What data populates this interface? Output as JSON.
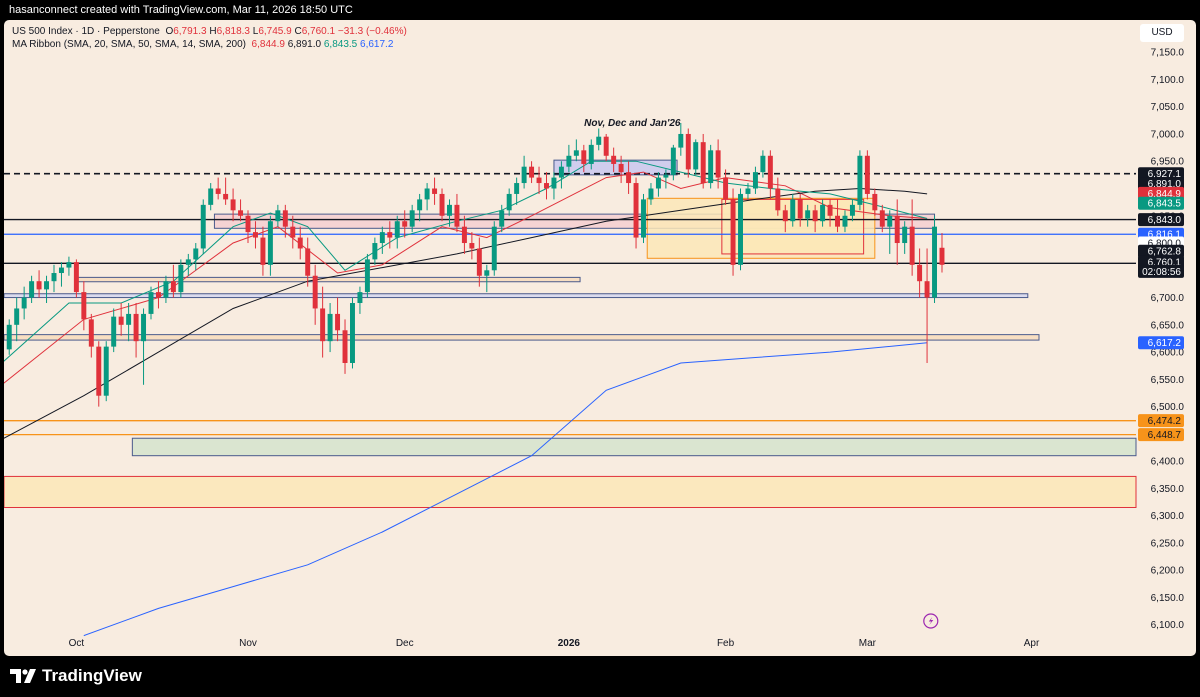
{
  "header": {
    "attribution": "hasanconnect created with TradingView.com, Mar 11, 2026 18:50 UTC"
  },
  "legend": {
    "symbol": "US 500 Index · 1D · Pepperstone",
    "o_label": "O",
    "o": "6,791.3",
    "h_label": "H",
    "h": "6,818.3",
    "l_label": "L",
    "l": "6,745.9",
    "c_label": "C",
    "c": "6,760.1",
    "change": "−31.3 (−0.46%)",
    "ribbon_label": "MA Ribbon (SMA, 20, SMA, 50, SMA, 14, SMA, 200)",
    "ribbon_values": [
      "6,844.9",
      "6,891.0",
      "6,843.5",
      "6,617.2"
    ]
  },
  "currency": "USD",
  "annotation": "Nov, Dec and Jan'26",
  "footer": {
    "brand": "TradingView",
    "logo_icon": "tradingview-logo-icon",
    "event_icon": "lightning-icon"
  },
  "colors": {
    "up": "#089981",
    "down": "#e0313b",
    "sma20": "#e0313b",
    "sma50": "#131722",
    "sma14": "#089981",
    "sma200": "#2962ff",
    "orange": "#f7931a"
  },
  "chart_data": {
    "type": "candlestick",
    "timeframe": "1D",
    "ylim": [
      6050,
      7220
    ],
    "y_ticks": [
      6100,
      6150,
      6200,
      6250,
      6300,
      6350,
      6400,
      6450,
      6500,
      6550,
      6600,
      6650,
      6700,
      6750,
      6800,
      6850,
      6900,
      6950,
      7000,
      7050,
      7100,
      7150
    ],
    "x_labels": [
      "Oct",
      "Nov",
      "Dec",
      "2026",
      "Feb",
      "Mar",
      "Apr"
    ],
    "x_label_index": [
      9,
      32,
      53,
      75,
      96,
      115,
      137
    ],
    "axis_index_range": [
      -0.7,
      151
    ],
    "candles": [
      [
        6605,
        6660,
        6595,
        6650
      ],
      [
        6650,
        6700,
        6620,
        6680
      ],
      [
        6680,
        6720,
        6660,
        6700
      ],
      [
        6700,
        6740,
        6690,
        6730
      ],
      [
        6730,
        6750,
        6700,
        6715
      ],
      [
        6715,
        6740,
        6690,
        6730
      ],
      [
        6730,
        6760,
        6710,
        6745
      ],
      [
        6745,
        6765,
        6720,
        6755
      ],
      [
        6755,
        6775,
        6740,
        6765
      ],
      [
        6765,
        6770,
        6700,
        6710
      ],
      [
        6710,
        6730,
        6640,
        6660
      ],
      [
        6660,
        6670,
        6590,
        6610
      ],
      [
        6610,
        6620,
        6500,
        6520
      ],
      [
        6520,
        6620,
        6510,
        6610
      ],
      [
        6610,
        6680,
        6600,
        6665
      ],
      [
        6665,
        6690,
        6630,
        6650
      ],
      [
        6650,
        6690,
        6620,
        6670
      ],
      [
        6670,
        6690,
        6590,
        6620
      ],
      [
        6620,
        6680,
        6540,
        6670
      ],
      [
        6670,
        6720,
        6660,
        6710
      ],
      [
        6710,
        6730,
        6680,
        6700
      ],
      [
        6700,
        6740,
        6690,
        6730
      ],
      [
        6730,
        6760,
        6700,
        6710
      ],
      [
        6710,
        6770,
        6700,
        6760
      ],
      [
        6760,
        6780,
        6740,
        6770
      ],
      [
        6770,
        6800,
        6750,
        6790
      ],
      [
        6790,
        6880,
        6780,
        6870
      ],
      [
        6870,
        6910,
        6860,
        6900
      ],
      [
        6900,
        6920,
        6880,
        6890
      ],
      [
        6890,
        6920,
        6870,
        6880
      ],
      [
        6880,
        6900,
        6840,
        6860
      ],
      [
        6860,
        6880,
        6840,
        6850
      ],
      [
        6850,
        6860,
        6800,
        6820
      ],
      [
        6820,
        6840,
        6790,
        6810
      ],
      [
        6810,
        6830,
        6740,
        6760
      ],
      [
        6760,
        6850,
        6740,
        6840
      ],
      [
        6840,
        6870,
        6830,
        6860
      ],
      [
        6860,
        6870,
        6810,
        6830
      ],
      [
        6830,
        6850,
        6790,
        6810
      ],
      [
        6810,
        6830,
        6770,
        6790
      ],
      [
        6790,
        6810,
        6720,
        6740
      ],
      [
        6740,
        6760,
        6650,
        6680
      ],
      [
        6680,
        6720,
        6590,
        6620
      ],
      [
        6620,
        6690,
        6600,
        6670
      ],
      [
        6670,
        6700,
        6620,
        6640
      ],
      [
        6640,
        6660,
        6560,
        6580
      ],
      [
        6580,
        6700,
        6570,
        6690
      ],
      [
        6690,
        6720,
        6670,
        6710
      ],
      [
        6710,
        6780,
        6700,
        6770
      ],
      [
        6770,
        6810,
        6760,
        6800
      ],
      [
        6800,
        6830,
        6780,
        6820
      ],
      [
        6820,
        6840,
        6790,
        6810
      ],
      [
        6810,
        6850,
        6790,
        6840
      ],
      [
        6840,
        6860,
        6810,
        6830
      ],
      [
        6830,
        6870,
        6820,
        6860
      ],
      [
        6860,
        6890,
        6840,
        6880
      ],
      [
        6880,
        6910,
        6860,
        6900
      ],
      [
        6900,
        6920,
        6870,
        6890
      ],
      [
        6890,
        6900,
        6840,
        6850
      ],
      [
        6850,
        6880,
        6830,
        6870
      ],
      [
        6870,
        6890,
        6820,
        6830
      ],
      [
        6830,
        6850,
        6780,
        6800
      ],
      [
        6800,
        6820,
        6770,
        6790
      ],
      [
        6790,
        6810,
        6720,
        6740
      ],
      [
        6740,
        6760,
        6710,
        6750
      ],
      [
        6750,
        6840,
        6740,
        6830
      ],
      [
        6830,
        6870,
        6820,
        6860
      ],
      [
        6860,
        6900,
        6850,
        6890
      ],
      [
        6890,
        6920,
        6870,
        6910
      ],
      [
        6910,
        6960,
        6900,
        6940
      ],
      [
        6940,
        6950,
        6910,
        6920
      ],
      [
        6920,
        6940,
        6890,
        6910
      ],
      [
        6910,
        6930,
        6880,
        6900
      ],
      [
        6900,
        6930,
        6880,
        6920
      ],
      [
        6920,
        6950,
        6900,
        6940
      ],
      [
        6940,
        6980,
        6930,
        6960
      ],
      [
        6960,
        6990,
        6950,
        6970
      ],
      [
        6970,
        6980,
        6930,
        6945
      ],
      [
        6945,
        6990,
        6935,
        6980
      ],
      [
        6980,
        7010,
        6970,
        6995
      ],
      [
        6995,
        7000,
        6950,
        6960
      ],
      [
        6960,
        6975,
        6930,
        6945
      ],
      [
        6945,
        6960,
        6910,
        6930
      ],
      [
        6930,
        6950,
        6890,
        6910
      ],
      [
        6910,
        6920,
        6790,
        6810
      ],
      [
        6810,
        6890,
        6800,
        6880
      ],
      [
        6880,
        6910,
        6870,
        6900
      ],
      [
        6900,
        6930,
        6885,
        6920
      ],
      [
        6920,
        6935,
        6900,
        6925
      ],
      [
        6925,
        6980,
        6915,
        6975
      ],
      [
        6975,
        7020,
        6960,
        7000
      ],
      [
        7000,
        7010,
        6920,
        6935
      ],
      [
        6935,
        6990,
        6925,
        6985
      ],
      [
        6985,
        7000,
        6900,
        6910
      ],
      [
        6910,
        6980,
        6900,
        6970
      ],
      [
        6970,
        6990,
        6900,
        6920
      ],
      [
        6920,
        6935,
        6870,
        6880
      ],
      [
        6880,
        6900,
        6740,
        6760
      ],
      [
        6760,
        6900,
        6750,
        6890
      ],
      [
        6890,
        6910,
        6880,
        6900
      ],
      [
        6900,
        6940,
        6890,
        6930
      ],
      [
        6930,
        6970,
        6920,
        6960
      ],
      [
        6960,
        6970,
        6880,
        6900
      ],
      [
        6900,
        6920,
        6850,
        6860
      ],
      [
        6860,
        6870,
        6820,
        6840
      ],
      [
        6840,
        6890,
        6830,
        6880
      ],
      [
        6880,
        6890,
        6830,
        6845
      ],
      [
        6845,
        6870,
        6830,
        6860
      ],
      [
        6860,
        6870,
        6820,
        6840
      ],
      [
        6840,
        6880,
        6830,
        6870
      ],
      [
        6870,
        6880,
        6830,
        6850
      ],
      [
        6850,
        6880,
        6820,
        6830
      ],
      [
        6830,
        6860,
        6820,
        6850
      ],
      [
        6850,
        6880,
        6840,
        6870
      ],
      [
        6870,
        6970,
        6860,
        6960
      ],
      [
        6960,
        6970,
        6880,
        6890
      ],
      [
        6890,
        6900,
        6850,
        6860
      ],
      [
        6860,
        6870,
        6820,
        6830
      ],
      [
        6830,
        6860,
        6780,
        6850
      ],
      [
        6850,
        6880,
        6760,
        6800
      ],
      [
        6800,
        6840,
        6780,
        6830
      ],
      [
        6830,
        6880,
        6740,
        6760
      ],
      [
        6760,
        6790,
        6700,
        6730
      ],
      [
        6730,
        6790,
        6580,
        6700
      ],
      [
        6700,
        6850,
        6690,
        6830
      ],
      [
        6791.3,
        6818.3,
        6745.9,
        6760.1
      ]
    ],
    "ma_ribbon": [
      {
        "name": "SMA 20",
        "color": "#e0313b",
        "points": [
          [
            -1,
            6540
          ],
          [
            10,
            6660
          ],
          [
            20,
            6700
          ],
          [
            30,
            6800
          ],
          [
            36,
            6830
          ],
          [
            44,
            6745
          ],
          [
            50,
            6760
          ],
          [
            58,
            6830
          ],
          [
            64,
            6810
          ],
          [
            70,
            6850
          ],
          [
            80,
            6920
          ],
          [
            85,
            6930
          ],
          [
            90,
            6900
          ],
          [
            96,
            6920
          ],
          [
            104,
            6905
          ],
          [
            110,
            6865
          ],
          [
            118,
            6850
          ],
          [
            123,
            6845
          ]
        ]
      },
      {
        "name": "SMA 50",
        "color": "#131722",
        "points": [
          [
            -1,
            6440
          ],
          [
            10,
            6520
          ],
          [
            20,
            6600
          ],
          [
            30,
            6680
          ],
          [
            40,
            6730
          ],
          [
            50,
            6755
          ],
          [
            60,
            6780
          ],
          [
            70,
            6810
          ],
          [
            80,
            6840
          ],
          [
            90,
            6860
          ],
          [
            100,
            6880
          ],
          [
            108,
            6895
          ],
          [
            114,
            6900
          ],
          [
            120,
            6895
          ],
          [
            123,
            6890
          ]
        ]
      },
      {
        "name": "SMA 14",
        "color": "#089981",
        "points": [
          [
            -1,
            6580
          ],
          [
            8,
            6690
          ],
          [
            15,
            6690
          ],
          [
            22,
            6730
          ],
          [
            30,
            6830
          ],
          [
            35,
            6855
          ],
          [
            40,
            6830
          ],
          [
            45,
            6750
          ],
          [
            52,
            6810
          ],
          [
            60,
            6840
          ],
          [
            66,
            6860
          ],
          [
            72,
            6900
          ],
          [
            78,
            6950
          ],
          [
            84,
            6950
          ],
          [
            90,
            6930
          ],
          [
            96,
            6910
          ],
          [
            102,
            6900
          ],
          [
            110,
            6890
          ],
          [
            116,
            6870
          ],
          [
            123,
            6845
          ]
        ]
      },
      {
        "name": "SMA 200",
        "color": "#2962ff",
        "points": [
          [
            10,
            6080
          ],
          [
            20,
            6130
          ],
          [
            30,
            6170
          ],
          [
            40,
            6210
          ],
          [
            50,
            6270
          ],
          [
            60,
            6340
          ],
          [
            70,
            6410
          ],
          [
            80,
            6530
          ],
          [
            90,
            6580
          ],
          [
            100,
            6590
          ],
          [
            110,
            6600
          ],
          [
            123,
            6617
          ]
        ]
      }
    ],
    "h_lines": [
      {
        "y": 6927.1,
        "style": "dashed",
        "color": "#131722"
      },
      {
        "y": 6843.0,
        "style": "solid",
        "color": "#131722"
      },
      {
        "y": 6816.1,
        "style": "solid",
        "color": "#2962ff"
      },
      {
        "y": 6762.8,
        "style": "solid",
        "color": "#131722"
      },
      {
        "y": 6474.2,
        "style": "solid",
        "color": "#f7931a"
      },
      {
        "y": 6448.7,
        "style": "solid",
        "color": "#f7931a"
      }
    ],
    "zones": [
      {
        "from": -0.7,
        "to": 151,
        "y0": 6315,
        "y1": 6372,
        "fill": "#fbe7b7",
        "stroke": "#e0313b"
      },
      {
        "from": 16.5,
        "to": 151,
        "y0": 6410,
        "y1": 6442,
        "fill": "#d5e4cc",
        "stroke": "#4a5a8c"
      },
      {
        "from": -0.7,
        "to": 138,
        "y0": 6622,
        "y1": 6632,
        "fill": "#f7dcbc",
        "stroke": "#4a5a8c"
      },
      {
        "from": -0.7,
        "to": 136.5,
        "y0": 6700,
        "y1": 6707,
        "fill": "#d6d8f0",
        "stroke": "#4a5a8c"
      },
      {
        "from": 9,
        "to": 76.5,
        "y0": 6729,
        "y1": 6737,
        "fill": "#f7dcbc",
        "stroke": "#4a5a8c"
      },
      {
        "from": 27.5,
        "to": 124,
        "y0": 6827,
        "y1": 6853,
        "fill": "#f4cfd0",
        "stroke": "#4a5a8c"
      },
      {
        "from": 73,
        "to": 89.5,
        "y0": 6925,
        "y1": 6952,
        "fill": "#c9c8ef",
        "stroke": "#4a5a8c"
      },
      {
        "from": 85.5,
        "to": 116,
        "y0": 6772,
        "y1": 6882,
        "fill": "#fbe7b7",
        "stroke": "#f7931a"
      },
      {
        "from": 95.5,
        "to": 114.5,
        "y0": 6780,
        "y1": 6880,
        "fill": "#fbe7b7",
        "stroke": "#e0313b"
      }
    ],
    "price_labels": [
      {
        "value": "6,927.1",
        "y": 6927.1,
        "bg": "#131722",
        "fg": "#ffffff"
      },
      {
        "value": "6,891.0",
        "y": 6909,
        "bg": "#131722",
        "fg": "#ffffff"
      },
      {
        "value": "6,844.9",
        "y": 6891,
        "bg": "#e0313b",
        "fg": "#ffffff"
      },
      {
        "value": "6,843.5",
        "y": 6873,
        "bg": "#089981",
        "fg": "#ffffff"
      },
      {
        "value": "6,843.0",
        "y": 6843,
        "bg": "#131722",
        "fg": "#ffffff"
      },
      {
        "value": "6,816.1",
        "y": 6816.1,
        "bg": "#2962ff",
        "fg": "#ffffff"
      },
      {
        "value": "6,800.0",
        "y": 6800,
        "bg": "#ffffff",
        "fg": "#131722"
      },
      {
        "value": "6,762.8",
        "y": 6785,
        "bg": "#131722",
        "fg": "#ffffff"
      },
      {
        "value": "6,760.1",
        "y": 6765,
        "bg": "#131722",
        "fg": "#ffffff"
      },
      {
        "value": "02:08:56",
        "y": 6748,
        "bg": "#131722",
        "fg": "#ffffff"
      },
      {
        "value": "6,617.2",
        "y": 6617.2,
        "bg": "#2962ff",
        "fg": "#ffffff"
      },
      {
        "value": "6,474.2",
        "y": 6474.2,
        "bg": "#f7931a",
        "fg": "#131722"
      },
      {
        "value": "6,448.7",
        "y": 6448.7,
        "bg": "#f7931a",
        "fg": "#131722"
      }
    ]
  }
}
